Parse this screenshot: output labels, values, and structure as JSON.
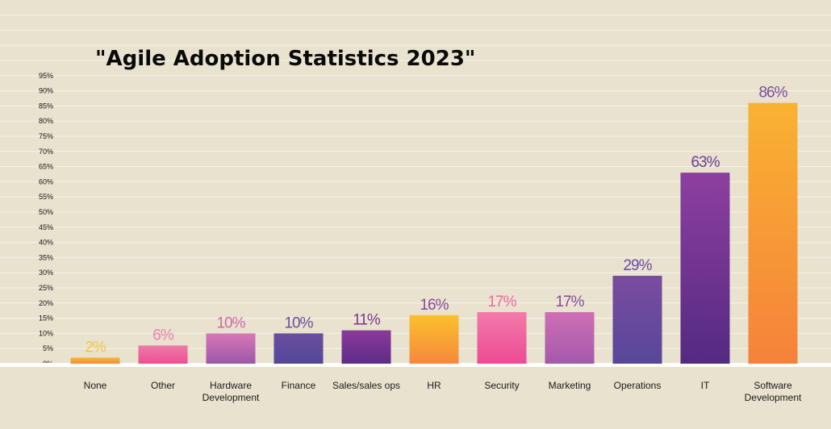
{
  "chart_data": {
    "type": "bar",
    "title": "\"Agile Adoption Statistics 2023\"",
    "xlabel": "",
    "ylabel": "",
    "ylim": [
      0,
      95
    ],
    "grid": true,
    "y_ticks": [
      "0%",
      "5%",
      "10%",
      "15%",
      "20%",
      "25%",
      "30%",
      "35%",
      "40%",
      "45%",
      "50%",
      "55%",
      "60%",
      "65%",
      "70%",
      "75%",
      "80%",
      "85%",
      "90%",
      "95%"
    ],
    "categories": [
      {
        "lines": [
          "None"
        ]
      },
      {
        "lines": [
          "Other"
        ]
      },
      {
        "lines": [
          "Hardware",
          "Development"
        ]
      },
      {
        "lines": [
          "Finance"
        ]
      },
      {
        "lines": [
          "Sales/sales ops"
        ]
      },
      {
        "lines": [
          "HR"
        ]
      },
      {
        "lines": [
          "Security"
        ]
      },
      {
        "lines": [
          "Marketing"
        ]
      },
      {
        "lines": [
          "Operations"
        ]
      },
      {
        "lines": [
          "IT"
        ]
      },
      {
        "lines": [
          "Software",
          "Development"
        ]
      }
    ],
    "values": [
      2,
      6,
      10,
      10,
      11,
      16,
      17,
      17,
      29,
      63,
      86
    ],
    "value_labels": [
      "2%",
      "6%",
      "10%",
      "10%",
      "11%",
      "16%",
      "17%",
      "17%",
      "29%",
      "63%",
      "86%"
    ],
    "colors": {
      "background": "#e8e2cf",
      "gridline": "#f7f3e7",
      "bars": [
        {
          "top": "#f7b733",
          "bottom": "#f48a3a",
          "label": "#f5c542"
        },
        {
          "top": "#f07aa8",
          "bottom": "#ec4f92",
          "label": "#ee7fae"
        },
        {
          "top": "#d878b8",
          "bottom": "#9c57a8",
          "label": "#cc6aac"
        },
        {
          "top": "#6a4f9e",
          "bottom": "#54479a",
          "label": "#6a4f9e"
        },
        {
          "top": "#8a3a9a",
          "bottom": "#5e2c88",
          "label": "#7b3690"
        },
        {
          "top": "#fbc02d",
          "bottom": "#f6883c",
          "label": "#8a4a9a"
        },
        {
          "top": "#f27ba9",
          "bottom": "#ee4a93",
          "label": "#ee6aa2"
        },
        {
          "top": "#cf6fb5",
          "bottom": "#a459ab",
          "label": "#8a4a9a"
        },
        {
          "top": "#7a4c9e",
          "bottom": "#57479b",
          "label": "#6b4c9e"
        },
        {
          "top": "#8e3fa0",
          "bottom": "#532a82",
          "label": "#6b3d94"
        },
        {
          "top": "#f9b233",
          "bottom": "#f5823b",
          "label": "#7a4c9e"
        }
      ]
    }
  }
}
